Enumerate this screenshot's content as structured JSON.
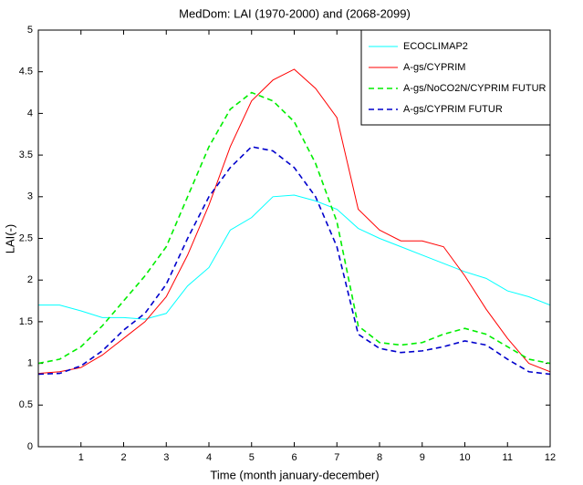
{
  "chart_data": {
    "type": "line",
    "title": "MedDom: LAI (1970-2000) and (2068-2099)",
    "x_label": "Time (month january-december)",
    "y_label": "LAI(-)",
    "x": [
      0,
      0.5,
      1,
      1.5,
      2,
      2.5,
      3,
      3.5,
      4,
      4.5,
      5,
      5.5,
      6,
      6.5,
      7,
      7.5,
      8,
      8.5,
      9,
      9.5,
      10,
      10.5,
      11,
      11.5,
      12
    ],
    "series": [
      {
        "name": "ECOCLIMAP2",
        "color": "#00ffff",
        "style": "solid",
        "values": [
          1.7,
          1.7,
          1.63,
          1.55,
          1.55,
          1.53,
          1.6,
          1.93,
          2.15,
          2.6,
          2.75,
          3.0,
          3.02,
          2.95,
          2.85,
          2.62,
          2.5,
          2.4,
          2.3,
          2.2,
          2.1,
          2.02,
          1.87,
          1.8,
          1.7
        ]
      },
      {
        "name": "A-gs/CYPRIM",
        "color": "#ff0000",
        "style": "solid",
        "values": [
          0.88,
          0.9,
          0.95,
          1.1,
          1.3,
          1.5,
          1.8,
          2.3,
          2.9,
          3.6,
          4.15,
          4.4,
          4.53,
          4.3,
          3.95,
          2.85,
          2.6,
          2.47,
          2.47,
          2.4,
          2.05,
          1.65,
          1.3,
          1.0,
          0.9
        ]
      },
      {
        "name": "A-gs/NoCO2N/CYPRIM FUTUR",
        "color": "#00ee00",
        "style": "dashed",
        "values": [
          1.0,
          1.05,
          1.2,
          1.45,
          1.75,
          2.05,
          2.4,
          3.0,
          3.6,
          4.05,
          4.25,
          4.15,
          3.9,
          3.4,
          2.7,
          1.45,
          1.25,
          1.22,
          1.25,
          1.35,
          1.42,
          1.35,
          1.2,
          1.05,
          1.0
        ]
      },
      {
        "name": "A-gs/CYPRIM FUTUR",
        "color": "#0000cc",
        "style": "dashed",
        "values": [
          0.87,
          0.88,
          0.97,
          1.15,
          1.4,
          1.6,
          1.95,
          2.5,
          3.0,
          3.35,
          3.6,
          3.55,
          3.35,
          3.0,
          2.4,
          1.35,
          1.18,
          1.13,
          1.15,
          1.2,
          1.27,
          1.22,
          1.05,
          0.9,
          0.87
        ]
      }
    ],
    "xlim": [
      0,
      12
    ],
    "xticks": [
      1,
      2,
      3,
      4,
      5,
      6,
      7,
      8,
      9,
      10,
      11,
      12
    ],
    "ylim": [
      0,
      5
    ],
    "yticks": [
      0,
      0.5,
      1,
      1.5,
      2,
      2.5,
      3,
      3.5,
      4,
      4.5,
      5
    ],
    "grid": false,
    "legend": "top-right"
  }
}
